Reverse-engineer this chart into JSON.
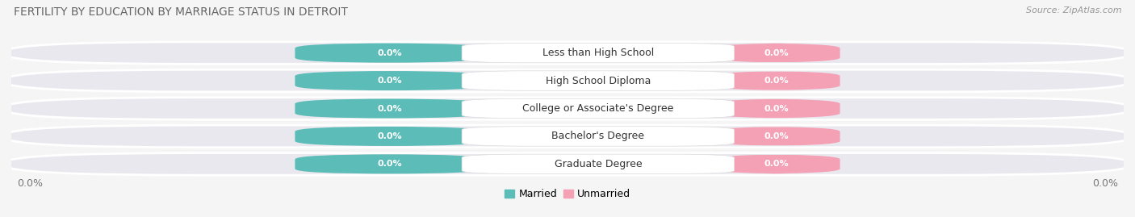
{
  "title": "FERTILITY BY EDUCATION BY MARRIAGE STATUS IN DETROIT",
  "source": "Source: ZipAtlas.com",
  "categories": [
    "Less than High School",
    "High School Diploma",
    "College or Associate's Degree",
    "Bachelor's Degree",
    "Graduate Degree"
  ],
  "married_values": [
    0.0,
    0.0,
    0.0,
    0.0,
    0.0
  ],
  "unmarried_values": [
    0.0,
    0.0,
    0.0,
    0.0,
    0.0
  ],
  "married_color": "#5bbcb8",
  "unmarried_color": "#f4a0b5",
  "background_color": "#f5f5f5",
  "row_bg_color": "#e8e8ee",
  "title_fontsize": 10,
  "source_fontsize": 8,
  "label_fontsize": 9,
  "value_fontsize": 8,
  "tick_fontsize": 9,
  "legend_married": "Married",
  "legend_unmarried": "Unmarried"
}
